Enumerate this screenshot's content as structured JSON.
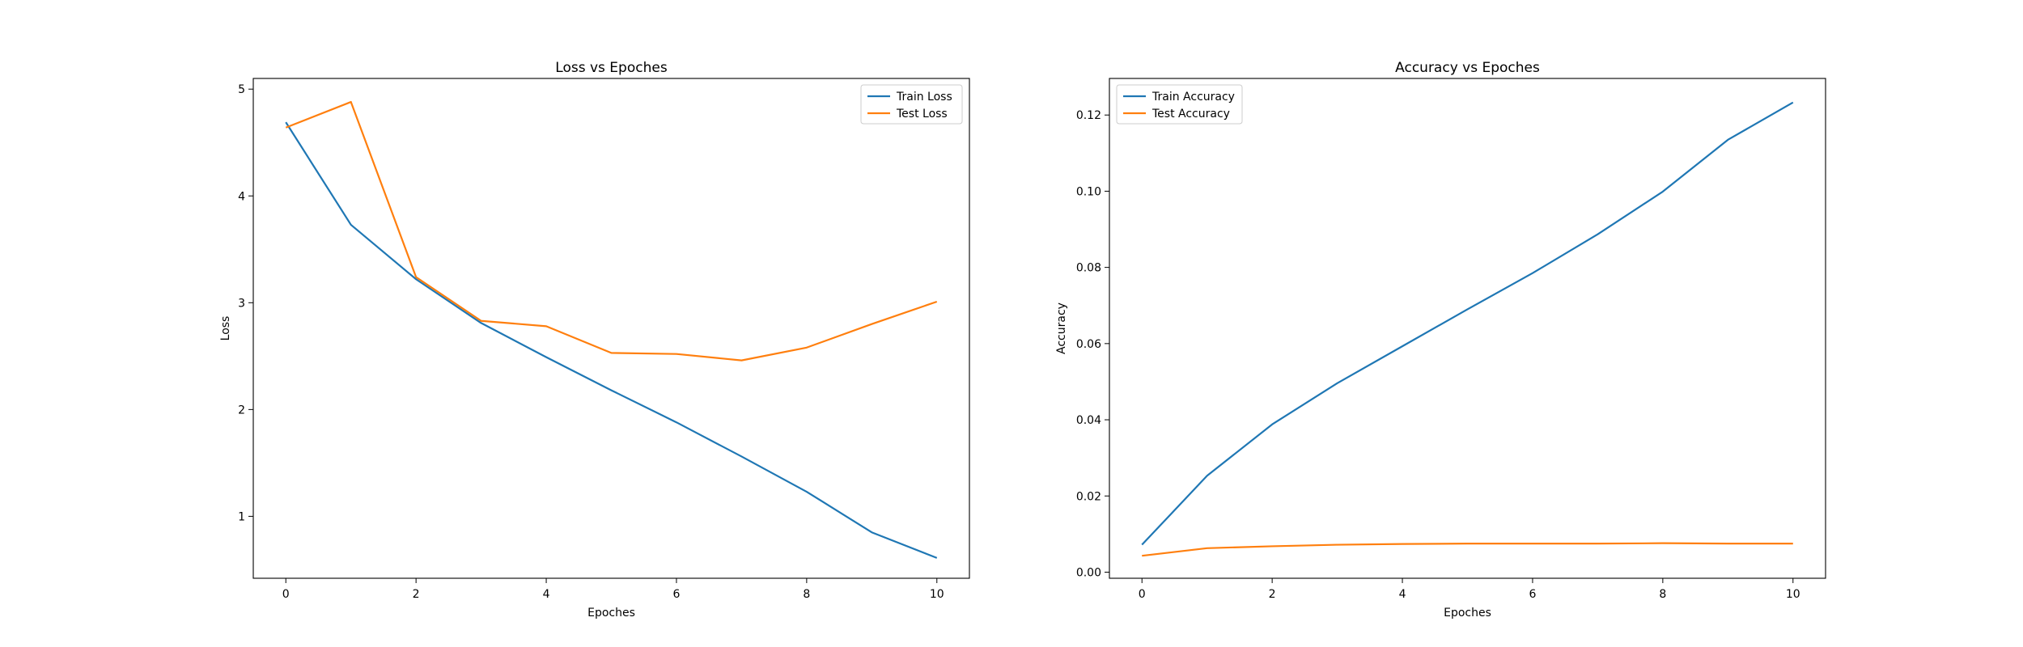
{
  "chart_data": [
    {
      "type": "line",
      "title": "Loss vs Epoches",
      "xlabel": "Epoches",
      "ylabel": "Loss",
      "xlim": [
        -0.5,
        10.5
      ],
      "ylim": [
        0.42,
        5.1
      ],
      "xticks": [
        0,
        2,
        4,
        6,
        8,
        10
      ],
      "yticks": [
        1,
        2,
        3,
        4,
        5
      ],
      "x": [
        0,
        1,
        2,
        3,
        4,
        5,
        6,
        7,
        8,
        9,
        10
      ],
      "grid": false,
      "legend_position": "top-right",
      "series": [
        {
          "name": "Train Loss",
          "color": "#1f77b4",
          "values": [
            4.69,
            3.73,
            3.22,
            2.81,
            2.49,
            2.18,
            1.88,
            1.56,
            1.23,
            0.85,
            0.61
          ]
        },
        {
          "name": "Test Loss",
          "color": "#ff7f0e",
          "values": [
            4.64,
            4.88,
            3.24,
            2.83,
            2.78,
            2.53,
            2.52,
            2.46,
            2.58,
            2.8,
            3.01
          ]
        }
      ]
    },
    {
      "type": "line",
      "title": "Accuracy vs Epoches",
      "xlabel": "Epoches",
      "ylabel": "Accuracy",
      "xlim": [
        -0.5,
        10.5
      ],
      "ylim": [
        -0.0016,
        0.1296
      ],
      "xticks": [
        0,
        2,
        4,
        6,
        8,
        10
      ],
      "yticks": [
        0.0,
        0.02,
        0.04,
        0.06,
        0.08,
        0.1,
        0.12
      ],
      "ytick_labels": [
        "0.00",
        "0.02",
        "0.04",
        "0.06",
        "0.08",
        "0.10",
        "0.12"
      ],
      "x": [
        0,
        1,
        2,
        3,
        4,
        5,
        6,
        7,
        8,
        9,
        10
      ],
      "grid": false,
      "legend_position": "top-left",
      "series": [
        {
          "name": "Train Accuracy",
          "color": "#1f77b4",
          "values": [
            0.0072,
            0.0253,
            0.0388,
            0.0496,
            0.0593,
            0.069,
            0.0785,
            0.0887,
            0.0999,
            0.1135,
            0.1233
          ]
        },
        {
          "name": "Test Accuracy",
          "color": "#ff7f0e",
          "values": [
            0.0043,
            0.0063,
            0.0068,
            0.0072,
            0.0074,
            0.0075,
            0.0075,
            0.0075,
            0.0076,
            0.0075,
            0.0075
          ]
        }
      ]
    }
  ]
}
